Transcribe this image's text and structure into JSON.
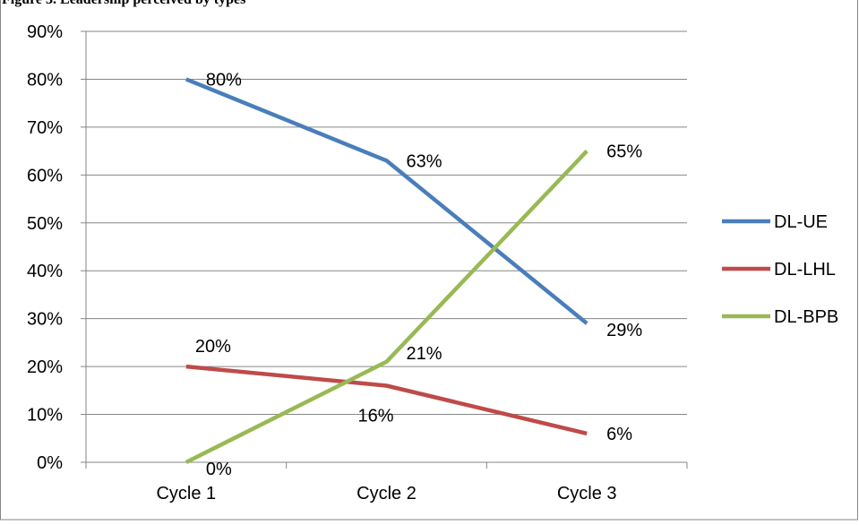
{
  "caption": "Figure 3. Leadership perceived by types",
  "chart_data": {
    "type": "line",
    "categories": [
      "Cycle 1",
      "Cycle 2",
      "Cycle 3"
    ],
    "ylim": [
      0,
      90
    ],
    "yticks": [
      0,
      10,
      20,
      30,
      40,
      50,
      60,
      70,
      80,
      90
    ],
    "ytick_labels": [
      "0%",
      "10%",
      "20%",
      "30%",
      "40%",
      "50%",
      "60%",
      "70%",
      "80%",
      "90%"
    ],
    "grid": true,
    "legend": "right",
    "series": [
      {
        "name": "DL-UE",
        "color": "#4a7ebb",
        "values": [
          80,
          63,
          29
        ],
        "labels": [
          "80%",
          "63%",
          "29%"
        ]
      },
      {
        "name": "DL-LHL",
        "color": "#be4b48",
        "values": [
          20,
          16,
          6
        ],
        "labels": [
          "20%",
          "16%",
          "6%"
        ]
      },
      {
        "name": "DL-BPB",
        "color": "#98b954",
        "values": [
          0,
          21,
          65
        ],
        "labels": [
          "0%",
          "21%",
          "65%"
        ]
      }
    ]
  }
}
